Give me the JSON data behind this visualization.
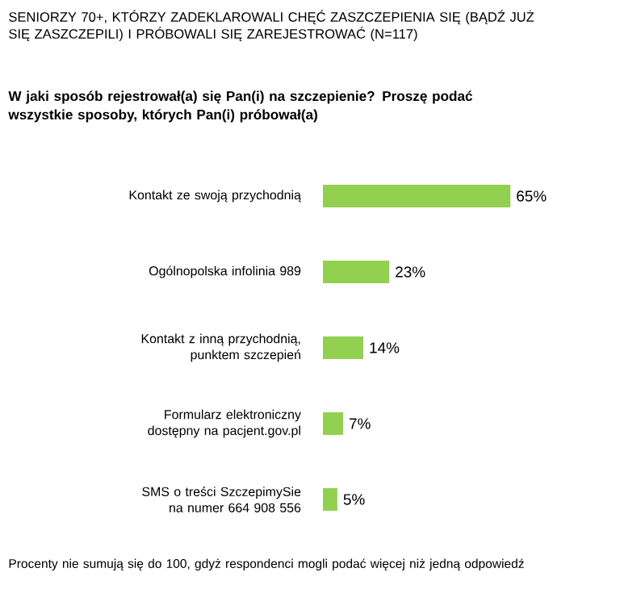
{
  "chart_data": {
    "type": "bar",
    "orientation": "horizontal",
    "title": "SENIORZY 70+, KTÓRZY ZADEKLAROWALI CHĘĆ ZASZCZEPIENIA SIĘ (BĄDŹ JUŻ SIĘ ZASZCZEPILI) I PRÓBOWALI SIĘ ZAREJESTROWAĆ (N=117)",
    "subtitle": "W jaki sposób rejestrował(a) się Pan(i) na szczepienie? Proszę podać wszystkie sposoby, których Pan(i) próbował(a)",
    "categories": [
      "Kontakt ze swoją przychodnią",
      "Ogólnopolska infolinia 989",
      "Kontakt z inną przychodnią, punktem szczepień",
      "Formularz elektroniczny dostępny na pacjent.gov.pl",
      "SMS o treści SzczepimySie na numer 664 908 556"
    ],
    "values": [
      65,
      23,
      14,
      7,
      5
    ],
    "color": "#92d050",
    "value_labels": [
      "65%",
      "23%",
      "14%",
      "7%",
      "5%"
    ],
    "annotations": [
      "Procenty nie sumują się do 100, gdyż respondenci mogli podać więcej niż jedną odpowiedź"
    ]
  }
}
